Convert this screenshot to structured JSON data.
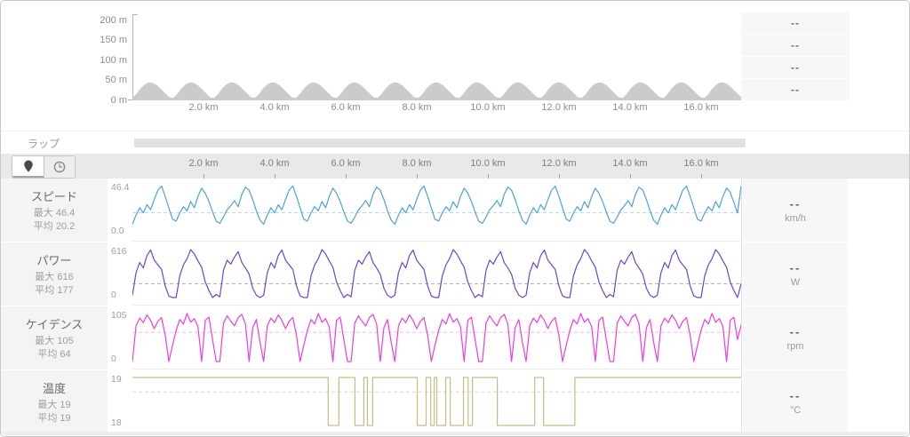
{
  "lap": {
    "label": "ラップ"
  },
  "toolbar": {
    "buttons": [
      {
        "name": "map-pin",
        "selected": true
      },
      {
        "name": "time",
        "selected": false
      }
    ]
  },
  "axis": {
    "xticks": [
      "2.0 km",
      "4.0 km",
      "6.0 km",
      "8.0 km",
      "10.0 km",
      "12.0 km",
      "14.0 km",
      "16.0 km"
    ]
  },
  "top_values": [
    "--",
    "--",
    "--",
    "--"
  ],
  "metrics": [
    {
      "title": "スピード",
      "max_label": "最大 46.4",
      "avg_label": "平均 20.2",
      "ymax_label": "46.4",
      "ymin_label": "0.0",
      "value": "--",
      "unit": "km/h"
    },
    {
      "title": "パワー",
      "max_label": "最大 616",
      "avg_label": "平均 177",
      "ymax_label": "616",
      "ymin_label": "0",
      "value": "--",
      "unit": "W"
    },
    {
      "title": "ケイデンス",
      "max_label": "最大 105",
      "avg_label": "平均 64",
      "ymax_label": "105",
      "ymin_label": "0",
      "value": "--",
      "unit": "rpm"
    },
    {
      "title": "温度",
      "max_label": "最大 19",
      "avg_label": "平均 19",
      "ymax_label": "19",
      "ymin_label": "18",
      "value": "--",
      "unit": "°C"
    }
  ],
  "chart_data": [
    {
      "id": "elevation",
      "type": "area",
      "color": "#cbcbcb",
      "ylabel_unit": "m",
      "xlabel_unit": "km",
      "ymin": 0,
      "ymax": 215,
      "x_range_km": [
        0,
        17.1
      ],
      "yticks": [
        "200 m",
        "150 m",
        "100 m",
        "50 m",
        "0 m"
      ],
      "xticks": [
        "2.0 km",
        "4.0 km",
        "6.0 km",
        "8.0 km",
        "10.0 km",
        "12.0 km",
        "14.0 km",
        "16.0 km"
      ],
      "values": [
        6,
        16,
        30,
        40,
        45,
        44,
        38,
        28,
        18,
        8,
        6,
        16,
        30,
        40,
        45,
        44,
        38,
        28,
        18,
        8,
        6,
        16,
        30,
        40,
        45,
        44,
        38,
        28,
        18,
        8,
        6,
        16,
        30,
        40,
        45,
        44,
        38,
        28,
        18,
        8,
        6,
        16,
        30,
        40,
        45,
        44,
        38,
        28,
        18,
        8,
        6,
        16,
        30,
        40,
        45,
        44,
        38,
        28,
        18,
        8,
        6,
        16,
        30,
        40,
        45,
        44,
        38,
        28,
        18,
        8,
        6,
        16,
        30,
        40,
        45,
        44,
        38,
        28,
        18,
        8,
        6,
        16,
        30,
        40,
        45,
        44,
        38,
        28,
        18,
        8,
        6,
        16,
        30,
        40,
        45,
        44,
        38,
        28,
        18,
        8,
        6,
        16,
        30,
        40,
        45,
        44,
        38,
        28,
        18,
        8,
        6,
        16,
        30,
        40,
        45,
        44,
        38,
        28,
        18,
        8,
        6,
        16,
        30,
        40,
        45,
        44,
        38,
        28,
        18,
        8,
        6,
        16,
        30,
        40,
        45,
        44,
        38,
        28,
        18,
        8,
        6,
        16,
        30,
        40,
        45,
        44,
        38,
        28,
        18,
        8
      ]
    },
    {
      "id": "speed",
      "type": "line",
      "title": "スピード",
      "unit": "km/h",
      "max": 46.4,
      "avg": 20.2,
      "ymin": 0,
      "ymax": 46.4,
      "color": "#4ba3dc",
      "avg_color": "#b5dbf2",
      "values": [
        9,
        18,
        25,
        20,
        28,
        23,
        33,
        42,
        46,
        36,
        25,
        14,
        12,
        20,
        26,
        22,
        31,
        25,
        36,
        44,
        39,
        31,
        21,
        12,
        10,
        16,
        23,
        27,
        32,
        26,
        38,
        45,
        42,
        33,
        22,
        13,
        9,
        18,
        25,
        20,
        28,
        23,
        33,
        42,
        46,
        36,
        25,
        14,
        12,
        20,
        26,
        22,
        31,
        25,
        36,
        44,
        39,
        31,
        21,
        12,
        10,
        16,
        23,
        27,
        32,
        26,
        38,
        45,
        42,
        33,
        22,
        13,
        9,
        18,
        25,
        20,
        28,
        23,
        33,
        42,
        46,
        36,
        25,
        14,
        12,
        20,
        26,
        22,
        31,
        25,
        36,
        44,
        39,
        31,
        21,
        12,
        10,
        16,
        23,
        27,
        32,
        26,
        38,
        45,
        42,
        33,
        22,
        13,
        9,
        18,
        25,
        20,
        28,
        23,
        33,
        42,
        46,
        36,
        25,
        14,
        12,
        20,
        26,
        22,
        31,
        25,
        36,
        44,
        39,
        31,
        21,
        12,
        10,
        16,
        23,
        27,
        32,
        26,
        38,
        45,
        42,
        33,
        22,
        13,
        9,
        18,
        25,
        20,
        28,
        23,
        33,
        42,
        46,
        36,
        25,
        14,
        12,
        20,
        26,
        22,
        31,
        25,
        36,
        44,
        40,
        30,
        20,
        46
      ]
    },
    {
      "id": "power",
      "type": "line",
      "title": "パワー",
      "unit": "W",
      "max": 616,
      "avg": 177,
      "ymin": 0,
      "ymax": 616,
      "color": "#6a46cf",
      "avg_color": "#b7a9e4",
      "values": [
        30,
        320,
        450,
        380,
        540,
        610,
        480,
        420,
        360,
        150,
        20,
        0,
        0,
        280,
        420,
        500,
        616,
        560,
        470,
        390,
        200,
        90,
        0,
        40,
        10,
        350,
        480,
        430,
        520,
        590,
        450,
        380,
        300,
        120,
        30,
        0,
        30,
        320,
        450,
        380,
        540,
        610,
        480,
        420,
        360,
        150,
        20,
        0,
        0,
        280,
        420,
        500,
        616,
        560,
        470,
        390,
        200,
        90,
        0,
        40,
        10,
        350,
        480,
        430,
        520,
        590,
        450,
        380,
        300,
        120,
        30,
        0,
        30,
        320,
        450,
        380,
        540,
        610,
        480,
        420,
        360,
        150,
        20,
        0,
        0,
        280,
        420,
        500,
        616,
        560,
        470,
        390,
        200,
        90,
        0,
        40,
        10,
        350,
        480,
        430,
        520,
        590,
        450,
        380,
        300,
        120,
        30,
        0,
        30,
        320,
        450,
        380,
        540,
        610,
        480,
        420,
        360,
        150,
        20,
        0,
        0,
        280,
        420,
        500,
        616,
        560,
        470,
        390,
        200,
        90,
        0,
        40,
        10,
        350,
        480,
        430,
        520,
        590,
        450,
        380,
        300,
        120,
        30,
        0,
        30,
        320,
        450,
        380,
        540,
        610,
        480,
        420,
        360,
        150,
        20,
        0,
        0,
        280,
        420,
        500,
        616,
        560,
        470,
        390,
        200,
        90,
        0,
        180
      ]
    },
    {
      "id": "cadence",
      "type": "line",
      "title": "ケイデンス",
      "unit": "rpm",
      "max": 105,
      "avg": 64,
      "ymin": 0,
      "ymax": 105,
      "color": "#ee3ddd",
      "avg_color": "#f8b5ef",
      "values": [
        0,
        78,
        95,
        85,
        102,
        90,
        72,
        88,
        96,
        58,
        0,
        35,
        68,
        92,
        82,
        105,
        86,
        94,
        76,
        0,
        90,
        97,
        48,
        0,
        0,
        84,
        100,
        88,
        78,
        96,
        103,
        82,
        0,
        74,
        92,
        42,
        0,
        78,
        95,
        85,
        102,
        90,
        72,
        88,
        96,
        58,
        0,
        35,
        68,
        92,
        82,
        105,
        86,
        94,
        76,
        0,
        90,
        97,
        48,
        0,
        0,
        84,
        100,
        88,
        78,
        96,
        103,
        82,
        0,
        74,
        92,
        42,
        0,
        78,
        95,
        85,
        102,
        90,
        72,
        88,
        96,
        58,
        0,
        35,
        68,
        92,
        82,
        105,
        86,
        94,
        76,
        0,
        90,
        97,
        48,
        0,
        0,
        84,
        100,
        88,
        78,
        96,
        103,
        82,
        0,
        74,
        92,
        42,
        0,
        78,
        95,
        85,
        102,
        90,
        72,
        88,
        96,
        58,
        0,
        35,
        68,
        92,
        82,
        105,
        86,
        94,
        76,
        0,
        90,
        97,
        48,
        0,
        0,
        84,
        100,
        88,
        78,
        96,
        103,
        82,
        0,
        74,
        92,
        42,
        0,
        78,
        95,
        85,
        102,
        90,
        72,
        88,
        96,
        58,
        0,
        35,
        68,
        92,
        82,
        105,
        86,
        94,
        76,
        0,
        90,
        97,
        48,
        80
      ]
    },
    {
      "id": "temperature",
      "type": "step",
      "title": "温度",
      "unit": "°C",
      "max": 19,
      "avg": 19,
      "ymin": 18,
      "ymax": 19,
      "avg_display": 18.7,
      "color": "#c9bc82",
      "avg_color": "#ded8b2",
      "x_range_km": [
        0,
        17.1
      ],
      "points": [
        [
          0,
          19
        ],
        [
          5.5,
          19
        ],
        [
          5.5,
          18
        ],
        [
          5.8,
          18
        ],
        [
          5.8,
          19
        ],
        [
          6.25,
          19
        ],
        [
          6.25,
          18
        ],
        [
          6.5,
          18
        ],
        [
          6.5,
          19
        ],
        [
          6.6,
          19
        ],
        [
          6.6,
          18
        ],
        [
          6.75,
          18
        ],
        [
          6.75,
          19
        ],
        [
          8.0,
          19
        ],
        [
          8.0,
          18
        ],
        [
          8.25,
          18
        ],
        [
          8.25,
          19
        ],
        [
          8.38,
          19
        ],
        [
          8.38,
          18
        ],
        [
          8.48,
          18
        ],
        [
          8.48,
          19
        ],
        [
          8.55,
          19
        ],
        [
          8.55,
          18
        ],
        [
          8.8,
          18
        ],
        [
          8.8,
          19
        ],
        [
          8.93,
          19
        ],
        [
          8.93,
          18
        ],
        [
          9.3,
          18
        ],
        [
          9.3,
          19
        ],
        [
          9.43,
          19
        ],
        [
          9.43,
          18
        ],
        [
          9.55,
          18
        ],
        [
          9.55,
          19
        ],
        [
          10.25,
          19
        ],
        [
          10.25,
          18
        ],
        [
          11.3,
          18
        ],
        [
          11.3,
          19
        ],
        [
          11.55,
          19
        ],
        [
          11.55,
          18
        ],
        [
          12.43,
          18
        ],
        [
          12.43,
          19
        ],
        [
          17.1,
          19
        ]
      ]
    }
  ],
  "colors": {
    "frame_border": "#c9c9c9",
    "panel_bg": "#f4f4f4",
    "value_bg": "#f7f7f7",
    "toolbar_bg": "#e9e9e9",
    "lap_bar": "#e1e1e1",
    "axis_line": "#b3b3b3",
    "speed": "#4ba3dc",
    "power": "#6a46cf",
    "cadence": "#ee3ddd",
    "temperature": "#c9bc82",
    "elevation_fill": "#cbcbcb"
  }
}
